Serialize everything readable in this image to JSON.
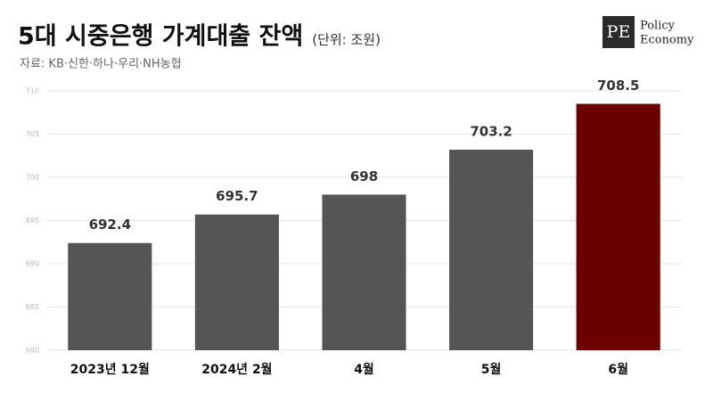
{
  "chart_data": {
    "type": "bar",
    "title": "5대 시중은행 가계대출 잔액",
    "subtitle": "(단위: 조원)",
    "source": "자료: KB·신한·하나·우리·NH농협",
    "categories": [
      "2023년 12월",
      "2024년 2월",
      "4월",
      "5월",
      "6월"
    ],
    "values": [
      692.4,
      695.7,
      698,
      703.2,
      708.5
    ],
    "colors": [
      "#555555",
      "#555555",
      "#555555",
      "#555555",
      "#6b0000"
    ],
    "ylim": [
      680,
      710
    ],
    "yticks": [
      680,
      685,
      690,
      695,
      700,
      705,
      710
    ],
    "grid": true
  },
  "brand": {
    "mark": "PE",
    "lines": [
      "Policy",
      "Economy"
    ]
  }
}
